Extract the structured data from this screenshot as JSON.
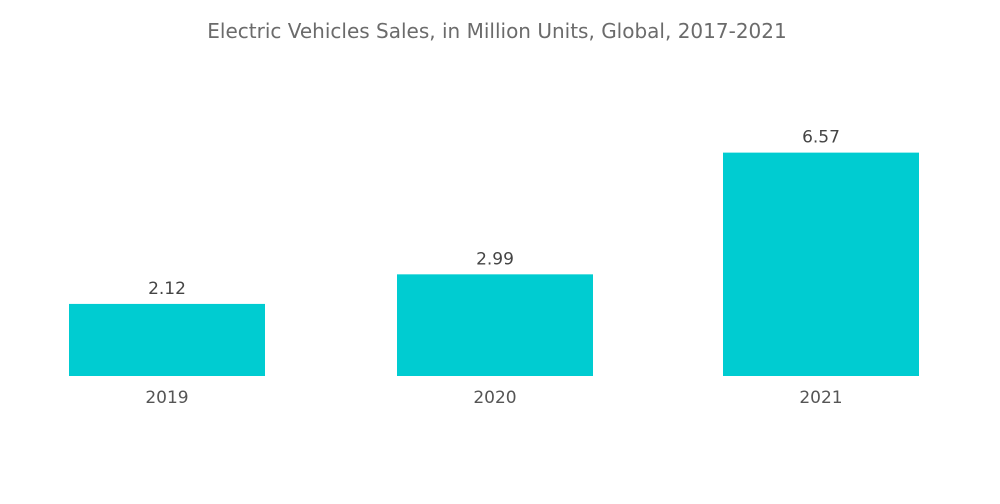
{
  "chart_data": {
    "type": "bar",
    "title": "Electric Vehicles Sales, in Million Units, Global, 2017-2021",
    "categories": [
      "2019",
      "2020",
      "2021"
    ],
    "values": [
      2.12,
      2.99,
      6.57
    ],
    "data_labels": [
      "2.12",
      "2.99",
      "6.57"
    ],
    "xlabel": "",
    "ylabel": "",
    "ylim": [
      0,
      7.2
    ],
    "grid": false,
    "legend": "none",
    "bar_color": "#00CCD1"
  }
}
